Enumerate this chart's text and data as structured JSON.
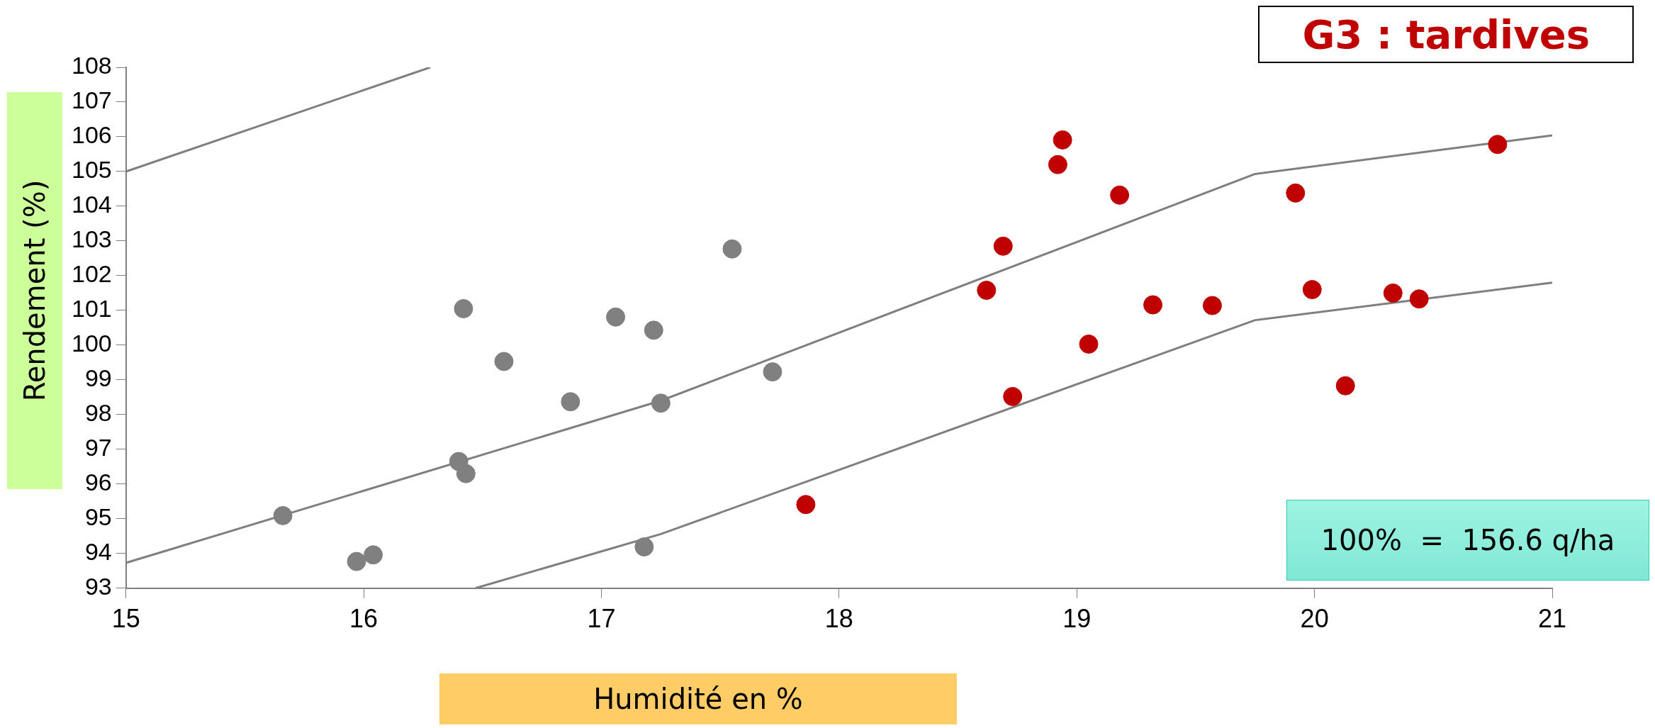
{
  "chart_data": {
    "type": "scatter",
    "title": "G3 : tardives",
    "xlabel": "Humidité en %",
    "ylabel": "Rendement (%)",
    "annotations": [
      "100%  =  156.6 q/ha"
    ],
    "xlim": [
      15,
      21
    ],
    "ylim": [
      93,
      108
    ],
    "xticks": [
      15,
      16,
      17,
      18,
      19,
      20,
      21
    ],
    "yticks": [
      93,
      94,
      95,
      96,
      97,
      98,
      99,
      100,
      101,
      102,
      103,
      104,
      105,
      106,
      107,
      108
    ],
    "grid": false,
    "legend": false,
    "marker": "circle",
    "series": [
      {
        "type": "scatter",
        "color": "#808080",
        "x": [
          15.66,
          15.97,
          16.04,
          16.42,
          16.4,
          16.43,
          16.59,
          16.87,
          17.06,
          17.22,
          17.25,
          17.18,
          17.55,
          17.72
        ],
        "values": [
          95.09,
          93.77,
          93.96,
          101.05,
          96.65,
          96.3,
          99.53,
          98.37,
          100.81,
          100.43,
          98.33,
          94.19,
          102.77,
          99.23
        ]
      },
      {
        "type": "scatter",
        "color": "#c00000",
        "x": [
          17.86,
          18.94,
          18.92,
          19.18,
          18.69,
          18.62,
          19.32,
          19.57,
          19.05,
          18.73,
          19.92,
          19.99,
          20.33,
          20.44,
          20.13,
          20.77
        ],
        "values": [
          95.41,
          105.91,
          105.2,
          104.32,
          102.85,
          101.58,
          101.16,
          101.14,
          100.03,
          98.52,
          104.38,
          101.6,
          101.5,
          101.33,
          98.83,
          105.78
        ]
      },
      {
        "type": "line",
        "color": "#7f7f7f",
        "marker": "none",
        "x": [
          15,
          16.28
        ],
        "values": [
          105,
          108
        ]
      },
      {
        "type": "line",
        "color": "#7f7f7f",
        "marker": "none",
        "x": [
          15,
          17.25,
          19.75,
          21
        ],
        "values": [
          93.73,
          98.4,
          104.93,
          106.04
        ]
      },
      {
        "type": "line",
        "color": "#7f7f7f",
        "marker": "none",
        "x": [
          16.47,
          17.25,
          19.75,
          21
        ],
        "values": [
          93,
          94.56,
          100.72,
          101.8
        ]
      }
    ]
  }
}
